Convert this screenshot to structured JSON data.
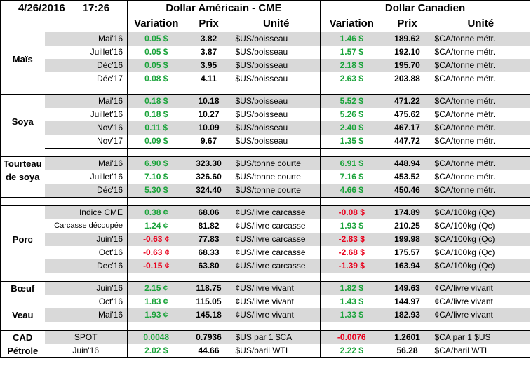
{
  "header": {
    "date": "4/26/2016",
    "time": "17:26",
    "us_title": "Dollar Américain - CME",
    "ca_title": "Dollar Canadien",
    "col_variation": "Variation",
    "col_prix": "Prix",
    "col_unite": "Unité"
  },
  "groups": [
    {
      "name": "Maïs",
      "rows": [
        {
          "contract": "Mai'16",
          "us_var": "0.05 $",
          "us_price": "3.82",
          "us_unit": "$US/boisseau",
          "ca_var": "1.46 $",
          "ca_price": "189.62",
          "ca_unit": "$CA/tonne métr."
        },
        {
          "contract": "Juillet'16",
          "us_var": "0.05 $",
          "us_price": "3.87",
          "us_unit": "$US/boisseau",
          "ca_var": "1.57 $",
          "ca_price": "192.10",
          "ca_unit": "$CA/tonne métr."
        },
        {
          "contract": "Déc'16",
          "us_var": "0.05 $",
          "us_price": "3.95",
          "us_unit": "$US/boisseau",
          "ca_var": "2.18 $",
          "ca_price": "195.70",
          "ca_unit": "$CA/tonne métr."
        },
        {
          "contract": "Déc'17",
          "us_var": "0.08 $",
          "us_price": "4.11",
          "us_unit": "$US/boisseau",
          "ca_var": "2.63 $",
          "ca_price": "203.88",
          "ca_unit": "$CA/tonne métr."
        }
      ]
    },
    {
      "name": "Soya",
      "rows": [
        {
          "contract": "Mai'16",
          "us_var": "0.18 $",
          "us_price": "10.18",
          "us_unit": "$US/boisseau",
          "ca_var": "5.52 $",
          "ca_price": "471.22",
          "ca_unit": "$CA/tonne métr."
        },
        {
          "contract": "Juillet'16",
          "us_var": "0.18 $",
          "us_price": "10.27",
          "us_unit": "$US/boisseau",
          "ca_var": "5.26 $",
          "ca_price": "475.62",
          "ca_unit": "$CA/tonne métr."
        },
        {
          "contract": "Nov'16",
          "us_var": "0.11 $",
          "us_price": "10.09",
          "us_unit": "$US/boisseau",
          "ca_var": "2.40 $",
          "ca_price": "467.17",
          "ca_unit": "$CA/tonne métr."
        },
        {
          "contract": "Nov'17",
          "us_var": "0.09 $",
          "us_price": "9.67",
          "us_unit": "$US/boisseau",
          "ca_var": "1.35 $",
          "ca_price": "447.72",
          "ca_unit": "$CA/tonne métr."
        }
      ]
    },
    {
      "name1": "Tourteau",
      "name2": "de soya",
      "rows": [
        {
          "contract": "Mai'16",
          "us_var": "6.90 $",
          "us_price": "323.30",
          "us_unit": "$US/tonne courte",
          "ca_var": "6.91 $",
          "ca_price": "448.94",
          "ca_unit": "$CA/tonne métr."
        },
        {
          "contract": "Juillet'16",
          "us_var": "7.10 $",
          "us_price": "326.60",
          "us_unit": "$US/tonne courte",
          "ca_var": "7.16 $",
          "ca_price": "453.52",
          "ca_unit": "$CA/tonne métr."
        },
        {
          "contract": "Déc'16",
          "us_var": "5.30 $",
          "us_price": "324.40",
          "us_unit": "$US/tonne courte",
          "ca_var": "4.66 $",
          "ca_price": "450.46",
          "ca_unit": "$CA/tonne métr."
        }
      ]
    },
    {
      "name": "Porc",
      "rows": [
        {
          "contract": "Indice CME",
          "us_var": "0.38 ¢",
          "us_price": "68.06",
          "us_unit": "¢US/livre carcasse",
          "ca_var": "-0.08 $",
          "ca_price": "174.89",
          "ca_unit": "$CA/100kg (Qc)"
        },
        {
          "contract": "Carcasse découpée",
          "us_var": "1.24 ¢",
          "us_price": "81.82",
          "us_unit": "¢US/livre carcasse",
          "ca_var": "1.93 $",
          "ca_price": "210.25",
          "ca_unit": "$CA/100kg (Qc)"
        },
        {
          "contract": "Juin'16",
          "us_var": "-0.63 ¢",
          "us_price": "77.83",
          "us_unit": "¢US/livre carcasse",
          "ca_var": "-2.83 $",
          "ca_price": "199.98",
          "ca_unit": "$CA/100kg (Qc)"
        },
        {
          "contract": "Oct'16",
          "us_var": "-0.63 ¢",
          "us_price": "68.33",
          "us_unit": "¢US/livre carcasse",
          "ca_var": "-2.68 $",
          "ca_price": "175.57",
          "ca_unit": "$CA/100kg (Qc)"
        },
        {
          "contract": "Dec'16",
          "us_var": "-0.15 ¢",
          "us_price": "63.80",
          "us_unit": "¢US/livre carcasse",
          "ca_var": "-1.39 $",
          "ca_price": "163.94",
          "ca_unit": "$CA/100kg (Qc)"
        }
      ]
    },
    {
      "name_boeuf": "Bœuf",
      "name_veau": "Veau",
      "rows": [
        {
          "contract": "Juin'16",
          "us_var": "2.15 ¢",
          "us_price": "118.75",
          "us_unit": "¢US/livre vivant",
          "ca_var": "1.82 $",
          "ca_price": "149.63",
          "ca_unit": "¢CA/livre vivant"
        },
        {
          "contract": "Oct'16",
          "us_var": "1.83 ¢",
          "us_price": "115.05",
          "us_unit": "¢US/livre vivant",
          "ca_var": "1.43 $",
          "ca_price": "144.97",
          "ca_unit": "¢CA/livre vivant"
        },
        {
          "contract": "Mai'16",
          "us_var": "1.93 ¢",
          "us_price": "145.18",
          "us_unit": "¢US/livre vivant",
          "ca_var": "1.33 $",
          "ca_price": "182.93",
          "ca_unit": "¢CA/livre vivant"
        }
      ]
    },
    {
      "name_cad": "CAD",
      "name_petrole": "Pétrole",
      "rows": [
        {
          "contract": "SPOT",
          "us_var": "0.0048",
          "us_price": "0.7936",
          "us_unit": "$US par 1 $CA",
          "ca_var": "-0.0076",
          "ca_price": "1.2601",
          "ca_unit": "$CA par 1 $US"
        },
        {
          "contract": "Juin'16",
          "us_var": "2.02 $",
          "us_price": "44.66",
          "us_unit": "$US/baril WTI",
          "ca_var": "2.22 $",
          "ca_price": "56.28",
          "ca_unit": "$CA/baril WTI"
        }
      ]
    }
  ],
  "colors": {
    "positive": "#1aa33a",
    "negative": "#e8001c",
    "shade": "#d9d9d9"
  }
}
